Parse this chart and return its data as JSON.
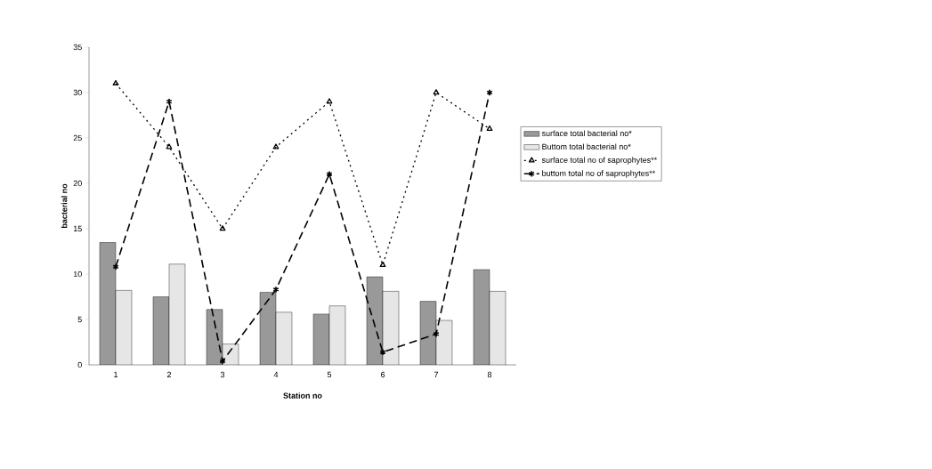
{
  "chart_data": {
    "type": "bar",
    "xlabel": "Station no",
    "ylabel": "bacterial no",
    "categories": [
      "1",
      "2",
      "3",
      "4",
      "5",
      "6",
      "7",
      "8"
    ],
    "series": [
      {
        "name": "surface total bacterial no*",
        "color": "#999999",
        "values": [
          13.5,
          7.5,
          6.1,
          8.0,
          5.6,
          9.7,
          7.0,
          10.5
        ]
      },
      {
        "name": "Buttom total bacterial no*",
        "color": "#e6e6e6",
        "values": [
          8.2,
          11.1,
          2.3,
          5.8,
          6.5,
          8.1,
          4.9,
          8.1
        ]
      },
      {
        "name": "surface total no of saprophytes**",
        "type": "line",
        "color": "#000000",
        "marker": "triangle",
        "line_style": "dotted",
        "values": [
          31,
          24,
          15,
          24,
          29,
          11,
          30,
          26
        ]
      },
      {
        "name": "buttom total no of saprophytes**",
        "type": "line",
        "color": "#000000",
        "marker": "cross",
        "line_style": "dashed",
        "values": [
          10.8,
          29,
          0.4,
          8.3,
          21,
          1.4,
          3.4,
          30
        ]
      }
    ],
    "ylim": [
      0,
      35
    ],
    "yticks": [
      0,
      5,
      10,
      15,
      20,
      25,
      30,
      35
    ],
    "grid": false,
    "legend": "right"
  }
}
